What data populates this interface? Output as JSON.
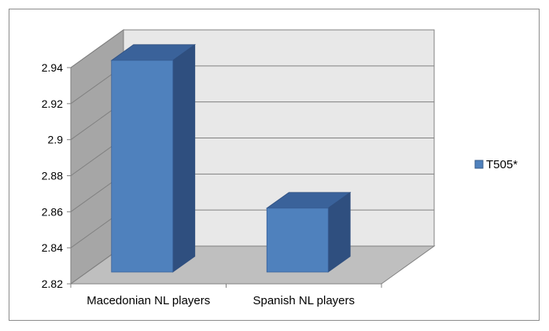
{
  "chart_data": {
    "type": "bar",
    "style": "3d-column",
    "categories": [
      "Macedonian NL players",
      "Spanish NL players"
    ],
    "series": [
      {
        "name": "T505*",
        "values": [
          2.944,
          2.862
        ],
        "color": "#4f81bd"
      }
    ],
    "y_ticks": [
      "2.82",
      "2.84",
      "2.86",
      "2.88",
      "2.9",
      "2.92",
      "2.94"
    ],
    "ylim": [
      2.82,
      2.94
    ],
    "grid": true,
    "legend_position": "right",
    "colors": {
      "bar_front": "#4f81bd",
      "bar_top": "#3a629a",
      "bar_side": "#2f4f7f",
      "back_wall": "#e8e8e8",
      "side_wall": "#a6a6a6",
      "floor": "#bfbfbf",
      "gridline": "#808080"
    }
  }
}
